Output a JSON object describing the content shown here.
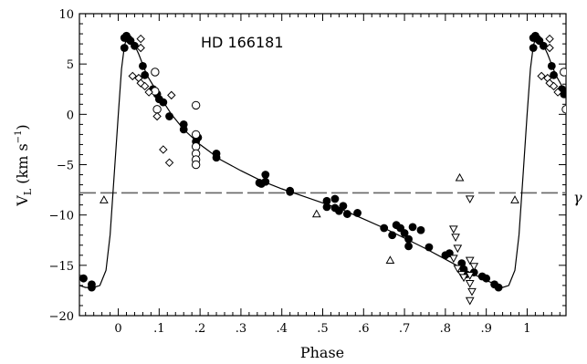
{
  "chart_data": {
    "type": "scatter",
    "title": "",
    "annotation": "HD 166181",
    "gamma_label": "γ",
    "xlabel": "Phase",
    "ylabel_main": "V",
    "ylabel_sub": "L",
    "ylabel_unit": " (km s",
    "ylabel_exp": "−1",
    "ylabel_close": ")",
    "xlim": [
      -0.095,
      1.095
    ],
    "ylim": [
      -20,
      10
    ],
    "grid": false,
    "x_ticks": [
      {
        "v": 0,
        "label": "0"
      },
      {
        "v": 0.1,
        "label": ".1"
      },
      {
        "v": 0.2,
        "label": ".2"
      },
      {
        "v": 0.3,
        "label": ".3"
      },
      {
        "v": 0.4,
        "label": ".4"
      },
      {
        "v": 0.5,
        "label": ".5"
      },
      {
        "v": 0.6,
        "label": ".6"
      },
      {
        "v": 0.7,
        "label": ".7"
      },
      {
        "v": 0.8,
        "label": ".8"
      },
      {
        "v": 0.9,
        "label": ".9"
      },
      {
        "v": 1,
        "label": "1"
      }
    ],
    "y_ticks": [
      {
        "v": 10,
        "label": "10"
      },
      {
        "v": 5,
        "label": "5"
      },
      {
        "v": 0,
        "label": "0"
      },
      {
        "v": -5,
        "label": "−5"
      },
      {
        "v": -10,
        "label": "−10"
      },
      {
        "v": -15,
        "label": "−15"
      },
      {
        "v": -20,
        "label": "−20"
      }
    ],
    "gamma_velocity": -7.8,
    "series": [
      {
        "marker": "filled-circle",
        "points": [
          [
            -0.085,
            -16.3
          ],
          [
            -0.065,
            -16.9
          ],
          [
            -0.065,
            -17.2
          ],
          [
            0.015,
            6.6
          ],
          [
            0.015,
            7.6
          ],
          [
            0.02,
            7.8
          ],
          [
            0.025,
            7.5
          ],
          [
            0.03,
            7.3
          ],
          [
            0.04,
            6.8
          ],
          [
            0.06,
            4.8
          ],
          [
            0.065,
            3.9
          ],
          [
            0.085,
            2.5
          ],
          [
            0.095,
            2.0
          ],
          [
            0.1,
            1.5
          ],
          [
            0.11,
            1.2
          ],
          [
            0.125,
            -0.2
          ],
          [
            0.16,
            -1.0
          ],
          [
            0.16,
            -1.5
          ],
          [
            0.195,
            -2.3
          ],
          [
            0.19,
            -2.7
          ],
          [
            0.24,
            -3.9
          ],
          [
            0.24,
            -4.3
          ],
          [
            0.345,
            -6.8
          ],
          [
            0.35,
            -6.9
          ],
          [
            0.36,
            -6.0
          ],
          [
            0.36,
            -6.7
          ],
          [
            0.42,
            -7.6
          ],
          [
            0.42,
            -7.7
          ],
          [
            0.51,
            -8.6
          ],
          [
            0.51,
            -9.2
          ],
          [
            0.53,
            -8.4
          ],
          [
            0.53,
            -9.3
          ],
          [
            0.54,
            -9.6
          ],
          [
            0.55,
            -9.1
          ],
          [
            0.56,
            -9.9
          ],
          [
            0.585,
            -9.8
          ],
          [
            0.65,
            -11.3
          ],
          [
            0.67,
            -12.0
          ],
          [
            0.68,
            -11.0
          ],
          [
            0.69,
            -11.3
          ],
          [
            0.7,
            -11.8
          ],
          [
            0.71,
            -12.4
          ],
          [
            0.71,
            -13.1
          ],
          [
            0.72,
            -11.2
          ],
          [
            0.74,
            -11.5
          ],
          [
            0.76,
            -13.2
          ],
          [
            0.8,
            -14.0
          ],
          [
            0.81,
            -13.8
          ],
          [
            0.84,
            -14.8
          ],
          [
            0.845,
            -15.4
          ],
          [
            0.85,
            -15.9
          ],
          [
            0.87,
            -15.7
          ],
          [
            0.89,
            -16.1
          ],
          [
            0.9,
            -16.3
          ],
          [
            0.92,
            -16.9
          ],
          [
            0.93,
            -17.2
          ],
          [
            1.015,
            6.6
          ],
          [
            1.015,
            7.6
          ],
          [
            1.02,
            7.8
          ],
          [
            1.025,
            7.5
          ],
          [
            1.03,
            7.3
          ],
          [
            1.04,
            6.8
          ],
          [
            1.06,
            4.8
          ],
          [
            1.065,
            3.9
          ],
          [
            1.085,
            2.5
          ],
          [
            1.09,
            2.0
          ]
        ]
      },
      {
        "marker": "open-circle",
        "points": [
          [
            0.09,
            4.2
          ],
          [
            0.09,
            2.3
          ],
          [
            0.095,
            0.5
          ],
          [
            0.19,
            0.9
          ],
          [
            0.19,
            -2.0
          ],
          [
            0.19,
            -3.2
          ],
          [
            0.19,
            -3.9
          ],
          [
            0.19,
            -4.5
          ],
          [
            0.19,
            -5.0
          ],
          [
            1.09,
            4.2
          ],
          [
            1.095,
            0.5
          ]
        ]
      },
      {
        "marker": "open-diamond",
        "points": [
          [
            0.055,
            7.5
          ],
          [
            0.055,
            6.6
          ],
          [
            0.035,
            3.8
          ],
          [
            0.05,
            3.6
          ],
          [
            0.055,
            3.1
          ],
          [
            0.065,
            2.8
          ],
          [
            0.075,
            2.2
          ],
          [
            0.095,
            -0.2
          ],
          [
            0.13,
            1.9
          ],
          [
            0.11,
            -3.5
          ],
          [
            0.125,
            -4.8
          ],
          [
            1.055,
            7.5
          ],
          [
            1.055,
            6.6
          ],
          [
            1.035,
            3.8
          ],
          [
            1.05,
            3.6
          ],
          [
            1.055,
            3.1
          ],
          [
            1.065,
            2.8
          ],
          [
            1.075,
            2.2
          ]
        ]
      },
      {
        "marker": "open-triangle-up",
        "points": [
          [
            -0.035,
            -8.5
          ],
          [
            0.485,
            -9.9
          ],
          [
            0.665,
            -14.5
          ],
          [
            0.835,
            -6.3
          ],
          [
            0.97,
            -8.5
          ]
        ]
      },
      {
        "marker": "open-triangle-down",
        "points": [
          [
            0.82,
            -11.4
          ],
          [
            0.825,
            -12.2
          ],
          [
            0.83,
            -13.3
          ],
          [
            0.82,
            -14.3
          ],
          [
            0.83,
            -15.3
          ],
          [
            0.84,
            -15.9
          ],
          [
            0.86,
            -8.4
          ],
          [
            0.86,
            -14.5
          ],
          [
            0.87,
            -15.1
          ],
          [
            0.86,
            -16.0
          ],
          [
            0.86,
            -16.8
          ],
          [
            0.865,
            -17.6
          ],
          [
            0.86,
            -18.5
          ],
          [
            0.845,
            -16.2
          ]
        ]
      }
    ],
    "fit_curve": [
      [
        -0.095,
        -17.0
      ],
      [
        -0.08,
        -17.2
      ],
      [
        -0.06,
        -17.2
      ],
      [
        -0.045,
        -17.0
      ],
      [
        -0.03,
        -15.5
      ],
      [
        -0.02,
        -12.0
      ],
      [
        -0.01,
        -6.0
      ],
      [
        0.0,
        0.0
      ],
      [
        0.008,
        4.5
      ],
      [
        0.015,
        6.8
      ],
      [
        0.02,
        7.5
      ],
      [
        0.035,
        7.3
      ],
      [
        0.05,
        6.0
      ],
      [
        0.07,
        3.9
      ],
      [
        0.1,
        1.9
      ],
      [
        0.13,
        0.0
      ],
      [
        0.16,
        -1.5
      ],
      [
        0.2,
        -3.0
      ],
      [
        0.25,
        -4.5
      ],
      [
        0.3,
        -5.6
      ],
      [
        0.35,
        -6.6
      ],
      [
        0.4,
        -7.4
      ],
      [
        0.45,
        -8.1
      ],
      [
        0.5,
        -8.8
      ],
      [
        0.55,
        -9.5
      ],
      [
        0.6,
        -10.4
      ],
      [
        0.65,
        -11.3
      ],
      [
        0.7,
        -12.3
      ],
      [
        0.75,
        -13.3
      ],
      [
        0.8,
        -14.4
      ],
      [
        0.85,
        -15.5
      ],
      [
        0.9,
        -16.5
      ],
      [
        0.93,
        -17.0
      ],
      [
        0.94,
        -17.2
      ],
      [
        0.955,
        -17.0
      ],
      [
        0.97,
        -15.5
      ],
      [
        0.98,
        -12.0
      ],
      [
        0.99,
        -6.0
      ],
      [
        1.0,
        0.0
      ],
      [
        1.008,
        4.5
      ],
      [
        1.015,
        6.8
      ],
      [
        1.02,
        7.5
      ],
      [
        1.035,
        7.3
      ],
      [
        1.05,
        6.0
      ],
      [
        1.07,
        3.9
      ],
      [
        1.095,
        2.1
      ]
    ]
  }
}
